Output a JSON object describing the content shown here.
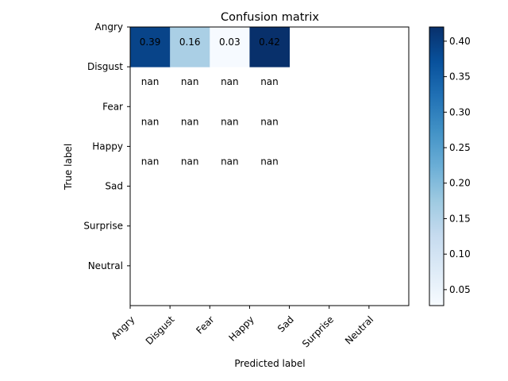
{
  "chart_data": {
    "type": "heatmap",
    "title": "Confusion matrix",
    "xlabel": "Predicted label",
    "ylabel": "True label",
    "x_categories": [
      "Angry",
      "Disgust",
      "Fear",
      "Happy",
      "Sad",
      "Surprise",
      "Neutral"
    ],
    "y_categories": [
      "Angry",
      "Disgust",
      "Fear",
      "Happy",
      "Sad",
      "Surprise",
      "Neutral"
    ],
    "cells": [
      {
        "row": 0,
        "col": 0,
        "value": 0.39,
        "label": "0.39"
      },
      {
        "row": 0,
        "col": 1,
        "value": 0.16,
        "label": "0.16"
      },
      {
        "row": 0,
        "col": 2,
        "value": 0.03,
        "label": "0.03"
      },
      {
        "row": 0,
        "col": 3,
        "value": 0.42,
        "label": "0.42"
      },
      {
        "row": 1,
        "col": 0,
        "value": null,
        "label": "nan"
      },
      {
        "row": 1,
        "col": 1,
        "value": null,
        "label": "nan"
      },
      {
        "row": 1,
        "col": 2,
        "value": null,
        "label": "nan"
      },
      {
        "row": 1,
        "col": 3,
        "value": null,
        "label": "nan"
      },
      {
        "row": 2,
        "col": 0,
        "value": null,
        "label": "nan"
      },
      {
        "row": 2,
        "col": 1,
        "value": null,
        "label": "nan"
      },
      {
        "row": 2,
        "col": 2,
        "value": null,
        "label": "nan"
      },
      {
        "row": 2,
        "col": 3,
        "value": null,
        "label": "nan"
      },
      {
        "row": 3,
        "col": 0,
        "value": null,
        "label": "nan"
      },
      {
        "row": 3,
        "col": 1,
        "value": null,
        "label": "nan"
      },
      {
        "row": 3,
        "col": 2,
        "value": null,
        "label": "nan"
      },
      {
        "row": 3,
        "col": 3,
        "value": null,
        "label": "nan"
      }
    ],
    "colorbar": {
      "min": 0.0275,
      "max": 0.42,
      "ticks": [
        "0.05",
        "0.10",
        "0.15",
        "0.20",
        "0.25",
        "0.30",
        "0.35",
        "0.40"
      ],
      "colormap": "Blues",
      "colormap_colors": [
        "#f7fbff",
        "#deebf7",
        "#c6dbef",
        "#9ecae1",
        "#6baed6",
        "#4292c6",
        "#2171b5",
        "#08519c",
        "#08306b"
      ]
    },
    "grid": false
  }
}
